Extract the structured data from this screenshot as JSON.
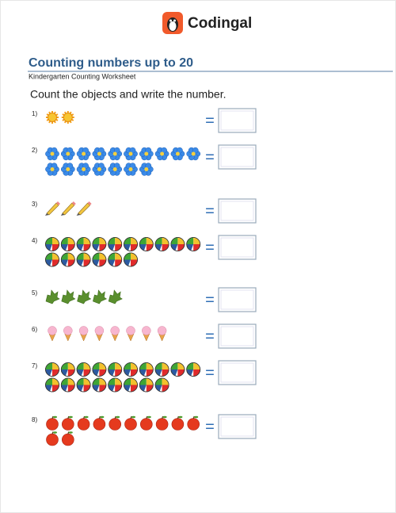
{
  "header": {
    "brand": "Codingal"
  },
  "title": "Counting numbers up to 20",
  "subtitle": "Kindergarten Counting Worksheet",
  "instruction": "Count the objects and write the number.",
  "equals": "=",
  "questions": [
    {
      "label": "1)",
      "object": "sun",
      "count": 2
    },
    {
      "label": "2)",
      "object": "flower",
      "count": 17
    },
    {
      "label": "3)",
      "object": "pencil",
      "count": 3
    },
    {
      "label": "4)",
      "object": "ball",
      "count": 16
    },
    {
      "label": "5)",
      "object": "leaf",
      "count": 5
    },
    {
      "label": "6)",
      "object": "ice-cream",
      "count": 8
    },
    {
      "label": "7)",
      "object": "ball",
      "count": 18
    },
    {
      "label": "8)",
      "object": "apple",
      "count": 12
    }
  ]
}
